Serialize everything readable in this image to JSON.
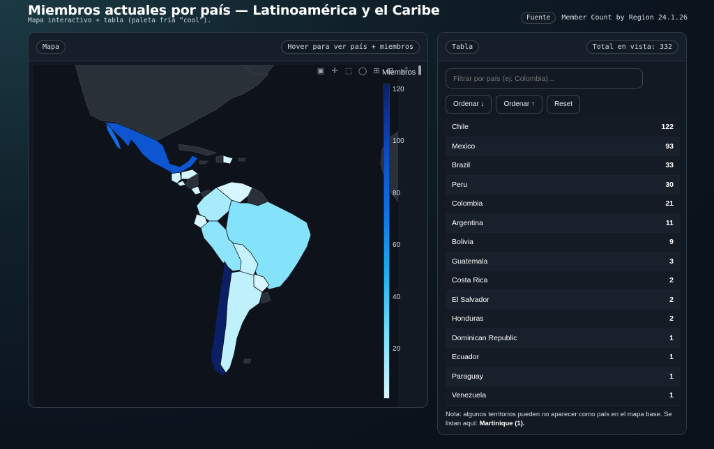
{
  "header": {
    "title": "Miembros actuales por país — Latinoamérica y el Caribe",
    "subtitle": "Mapa interactivo + tabla (paleta fría “cool”).",
    "source_badge": "Fuente",
    "source_text": "Member Count by Region 24.1.26"
  },
  "map_panel": {
    "title": "Mapa",
    "hint": "Hover para ver país + miembros",
    "modebar_icons": [
      "camera-icon",
      "pan-icon",
      "box-select-icon",
      "lasso-icon",
      "zoom-in-icon",
      "zoom-out-icon",
      "autoscale-icon",
      "plotly-logo-icon"
    ],
    "colorbar_title": "Miembros",
    "colorbar_ticks": [
      "120",
      "100",
      "80",
      "60",
      "40",
      "20"
    ]
  },
  "table_panel": {
    "title": "Tabla",
    "total_label": "Total en vista: 332",
    "filter_placeholder": "Filtrar por país (ej: Colombia)...",
    "buttons": {
      "sort_desc": "Ordenar ↓",
      "sort_asc": "Ordenar ↑",
      "reset": "Reset"
    },
    "rows": [
      {
        "country": "Chile",
        "count": "122"
      },
      {
        "country": "Mexico",
        "count": "93"
      },
      {
        "country": "Brazil",
        "count": "33"
      },
      {
        "country": "Peru",
        "count": "30"
      },
      {
        "country": "Colombia",
        "count": "21"
      },
      {
        "country": "Argentina",
        "count": "11"
      },
      {
        "country": "Bolivia",
        "count": "9"
      },
      {
        "country": "Guatemala",
        "count": "3"
      },
      {
        "country": "Costa Rica",
        "count": "2"
      },
      {
        "country": "El Salvador",
        "count": "2"
      },
      {
        "country": "Honduras",
        "count": "2"
      },
      {
        "country": "Dominican Republic",
        "count": "1"
      },
      {
        "country": "Ecuador",
        "count": "1"
      },
      {
        "country": "Paraguay",
        "count": "1"
      },
      {
        "country": "Venezuela",
        "count": "1"
      }
    ],
    "note_text": "Nota: algunos territorios pueden no aparecer como país en el mapa base. Se listan aquí:",
    "note_highlight": "Martinique (1)."
  },
  "colors": {
    "chile": "#0b1f66",
    "mexico": "#0e70e8",
    "mid": "#6fdcfa",
    "low": "#d9f6ff",
    "no_data": "#2a3038"
  }
}
